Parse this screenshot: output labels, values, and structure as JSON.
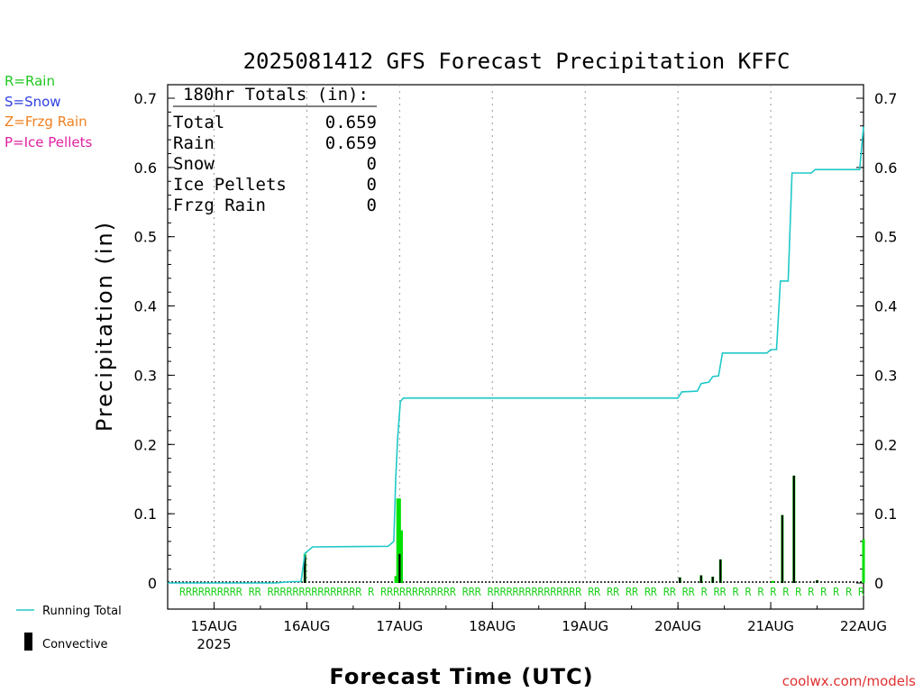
{
  "chart_data": {
    "type": "bar",
    "title": "2025081412 GFS Forecast Precipitation KFFC",
    "xlabel": "Forecast Time (UTC)",
    "ylabel": "Precipitation (in)",
    "ylim": [
      0,
      0.72
    ],
    "y_ticks": [
      0,
      0.1,
      0.2,
      0.3,
      0.4,
      0.5,
      0.6,
      0.7
    ],
    "xlim_hours_from_15AUG00Z": [
      -12,
      168
    ],
    "x_ticks": [
      {
        "hour": 0,
        "label": "15AUG",
        "sublabel": "2025"
      },
      {
        "hour": 24,
        "label": "16AUG"
      },
      {
        "hour": 48,
        "label": "17AUG"
      },
      {
        "hour": 72,
        "label": "18AUG"
      },
      {
        "hour": 96,
        "label": "19AUG"
      },
      {
        "hour": 120,
        "label": "20AUG"
      },
      {
        "hour": 144,
        "label": "21AUG"
      },
      {
        "hour": 168,
        "label": "22AUG"
      }
    ],
    "grid": "vertical dotted at day boundaries",
    "series": [
      {
        "name": "Running Total",
        "kind": "line",
        "color": "#20c8c8",
        "points": [
          [
            -12,
            0
          ],
          [
            16,
            0
          ],
          [
            20,
            0.002
          ],
          [
            22.5,
            0.002
          ],
          [
            23.5,
            0.043
          ],
          [
            25.5,
            0.052
          ],
          [
            45,
            0.053
          ],
          [
            46.5,
            0.06
          ],
          [
            47,
            0.15
          ],
          [
            47.5,
            0.21
          ],
          [
            48.2,
            0.262
          ],
          [
            49,
            0.267
          ],
          [
            120,
            0.267
          ],
          [
            121,
            0.276
          ],
          [
            125,
            0.277
          ],
          [
            126,
            0.288
          ],
          [
            128,
            0.29
          ],
          [
            129,
            0.298
          ],
          [
            130.5,
            0.299
          ],
          [
            131.5,
            0.332
          ],
          [
            143,
            0.332
          ],
          [
            144,
            0.337
          ],
          [
            145.5,
            0.337
          ],
          [
            146.5,
            0.436
          ],
          [
            148.5,
            0.436
          ],
          [
            149.5,
            0.592
          ],
          [
            154.5,
            0.592
          ],
          [
            155.5,
            0.597
          ],
          [
            167,
            0.597
          ],
          [
            168,
            0.659
          ]
        ]
      },
      {
        "name": "Rain",
        "kind": "bar",
        "color": "#00e000",
        "points": [
          [
            23.5,
            0.042
          ],
          [
            47,
            0.01
          ],
          [
            47.5,
            0.122
          ],
          [
            48,
            0.122
          ],
          [
            48.5,
            0.076
          ],
          [
            120.5,
            0.008
          ],
          [
            126,
            0.011
          ],
          [
            129,
            0.009
          ],
          [
            131,
            0.034
          ],
          [
            144.5,
            0.003
          ],
          [
            147,
            0.098
          ],
          [
            150,
            0.155
          ],
          [
            156,
            0.004
          ],
          [
            168,
            0.063
          ]
        ]
      },
      {
        "name": "Convective",
        "kind": "bar",
        "color": "#000000",
        "points": [
          [
            23.5,
            0.04
          ],
          [
            48,
            0.042
          ],
          [
            120.5,
            0.008
          ],
          [
            126,
            0.011
          ],
          [
            129,
            0.009
          ],
          [
            131,
            0.034
          ],
          [
            147,
            0.098
          ],
          [
            150,
            0.155
          ],
          [
            156,
            0.004
          ]
        ]
      }
    ],
    "ptype_strip": {
      "color": "#20d020",
      "text_lines": [
        "RRRRRRRRRR RR RRRRRRRRRRRRRRR R RRRRRRRRRRRR RRR RRRRRRRRRRRRRRR RR RR RR RR RR RR R RR R R R R R R R R R R R"
      ]
    },
    "totals_box": {
      "heading": "180hr Totals (in):",
      "rows": [
        {
          "label": "Total",
          "value": "0.659"
        },
        {
          "label": "Rain",
          "value": "0.659"
        },
        {
          "label": "Snow",
          "value": "0"
        },
        {
          "label": "Ice Pellets",
          "value": "0"
        },
        {
          "label": "Frzg Rain",
          "value": "0"
        }
      ]
    }
  },
  "ptype_legend": [
    {
      "text": "R=Rain",
      "color": "#20c820"
    },
    {
      "text": "S=Snow",
      "color": "#3040e0"
    },
    {
      "text": "Z=Frzg Rain",
      "color": "#f08020"
    },
    {
      "text": "P=Ice Pellets",
      "color": "#e020a0"
    }
  ],
  "bottom_legend": {
    "running_total": "Running Total",
    "convective": "Convective"
  },
  "credit": {
    "text": "coolwx.com/models",
    "color": "#e03030"
  }
}
